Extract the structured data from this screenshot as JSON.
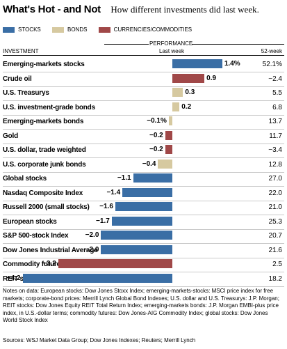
{
  "header": {
    "title": "What's Hot - and Not",
    "subtitle": "How different investments did last week."
  },
  "legend": [
    {
      "label": "STOCKS",
      "color": "#3a6ea5"
    },
    {
      "label": "BONDS",
      "color": "#d6c9a0"
    },
    {
      "label": "CURRENCIES/COMMODITIES",
      "color": "#a04848"
    }
  ],
  "columns": {
    "group": "PERFORMANCE",
    "investment": "INVESTMENT",
    "last_week": "Last week",
    "week52": "52-week"
  },
  "chart_data": {
    "type": "bar",
    "orientation": "horizontal",
    "categories": [
      "Emerging-markets stocks",
      "Crude oil",
      "U.S. Treasurys",
      "U.S. investment-grade bonds",
      "Emerging-markets bonds",
      "Gold",
      "U.S. dollar, trade weighted",
      "U.S. corporate junk bonds",
      "Global stocks",
      "Nasdaq Composite Index",
      "Russell 2000 (small stocks)",
      "European stocks",
      "S&P 500-stock Index",
      "Dow Jones Industrial Average",
      "Commodity futures",
      "REIT stocks"
    ],
    "types": [
      "stocks",
      "commodities",
      "bonds",
      "bonds",
      "bonds",
      "commodities",
      "commodities",
      "bonds",
      "stocks",
      "stocks",
      "stocks",
      "stocks",
      "stocks",
      "stocks",
      "commodities",
      "stocks"
    ],
    "values": [
      1.4,
      0.9,
      0.3,
      0.2,
      -0.1,
      -0.2,
      -0.2,
      -0.4,
      -1.1,
      -1.4,
      -1.6,
      -1.7,
      -2.0,
      -2.0,
      -3.2,
      -4.2
    ],
    "value_labels": [
      "1.4%",
      "0.9",
      "0.3",
      "0.2",
      "−0.1%",
      "−0.2",
      "−0.2",
      "−0.4",
      "−1.1",
      "−1.4",
      "−1.6",
      "−1.7",
      "−2.0",
      "−2.0",
      "−3.2",
      "−4.2"
    ],
    "week52": [
      "52.1%",
      "−2.4",
      "5.5",
      "6.8",
      "13.7",
      "11.7",
      "−3.4",
      "12.8",
      "27.0",
      "22.0",
      "21.0",
      "25.3",
      "20.7",
      "21.6",
      "2.5",
      "18.2"
    ],
    "colors": {
      "stocks": "#3a6ea5",
      "bonds": "#d6c9a0",
      "commodities": "#a04848"
    },
    "xlim": [
      -4.2,
      1.4
    ]
  },
  "notes": "Notes on data: European stocks: Dow Jones Stoxx Index; emerging-markets-stocks: MSCI price index for free markets; corporate-bond prices: Merrill Lynch Global Bond Indexes; U.S. dollar and U.S. Treasurys: J.P. Morgan; REIT stocks: Dow Jones Equity REIT Total Return Index; emerging-markets bonds: J.P. Morgan EMBI-plus price index, in U.S.-dollar terms; commodity futures: Dow Jones-AIG Commodity Index; global stocks: Dow Jones World Stock Index",
  "sources": "Sources: WSJ Market Data Group; Dow Jones Indexes; Reuters; Merrill Lynch"
}
